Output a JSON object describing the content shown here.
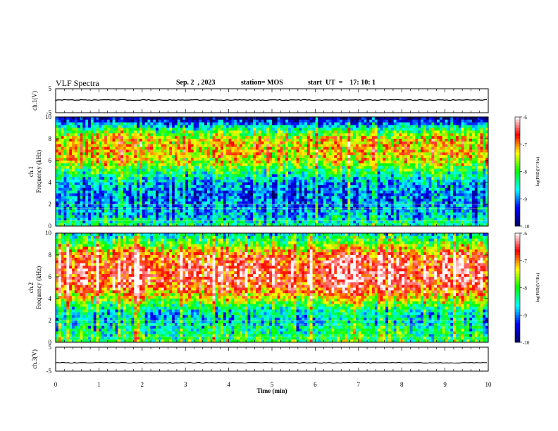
{
  "header": {
    "title": "VLF Spectra",
    "date": "Sep. 2  , 2023",
    "station": "station= MOS",
    "start_ut": "start  UT  =    17: 10: 1"
  },
  "colors": {
    "colormap": [
      "#000060",
      "#0000ff",
      "#00ffff",
      "#00ff00",
      "#ffff00",
      "#ff0000",
      "#ffffff"
    ],
    "trace": "#000000"
  },
  "chart_data": [
    {
      "type": "line",
      "panel": "ch1",
      "ylabel": "ch.1(V)",
      "ylim": [
        -5,
        5
      ],
      "yticks": [
        "5",
        "-5"
      ],
      "xlim": [
        0,
        10
      ],
      "series": [
        {
          "values_constant": 0.3
        }
      ]
    },
    {
      "type": "heatmap",
      "panel": "ch1-spectrogram",
      "ylabel": "ch.1\nFrequency (kHz)",
      "ylim": [
        0,
        10
      ],
      "yticks": [
        "0",
        "2",
        "4",
        "6",
        "8",
        "10"
      ],
      "xlim": [
        0,
        10
      ],
      "colorbar": {
        "label": "log(PSD)(V²/Hz)",
        "ticks": [
          "-6",
          "-7",
          "-8",
          "-9",
          "-10"
        ],
        "range": [
          -10,
          -6
        ]
      },
      "band_profile_khz": [
        0,
        1,
        2,
        3,
        4,
        5,
        6,
        7,
        8,
        9,
        10
      ],
      "band_log_psd": [
        -8.3,
        -8.8,
        -9.0,
        -9.1,
        -8.8,
        -8.2,
        -7.4,
        -7.2,
        -7.3,
        -8.4,
        -10
      ]
    },
    {
      "type": "heatmap",
      "panel": "ch2-spectrogram",
      "ylabel": "ch.2\nFrequency (kHz)",
      "ylim": [
        0,
        10
      ],
      "yticks": [
        "0",
        "2",
        "4",
        "6",
        "8",
        "10"
      ],
      "xlim": [
        0,
        10
      ],
      "colorbar": {
        "label": "log(PSD)(V²/Hz)",
        "ticks": [
          "-6",
          "-7",
          "-8",
          "-9",
          "-10"
        ],
        "range": [
          -10,
          -6
        ]
      },
      "band_profile_khz": [
        0,
        1,
        2,
        3,
        4,
        5,
        6,
        7,
        8,
        9,
        10
      ],
      "band_log_psd": [
        -8.0,
        -8.3,
        -8.7,
        -8.4,
        -7.4,
        -6.7,
        -6.5,
        -6.5,
        -6.8,
        -7.8,
        -8.6
      ]
    },
    {
      "type": "line",
      "panel": "ch3",
      "ylabel": "ch.3(V)",
      "ylim": [
        -5,
        5
      ],
      "yticks": [
        "5",
        "-5"
      ],
      "xlim": [
        0,
        10
      ],
      "series": [
        {
          "values_constant": -1.5
        }
      ]
    }
  ],
  "xaxis": {
    "label": "Time  (min)",
    "ticks": [
      "0",
      "1",
      "2",
      "3",
      "4",
      "5",
      "6",
      "7",
      "8",
      "9",
      "10"
    ]
  }
}
